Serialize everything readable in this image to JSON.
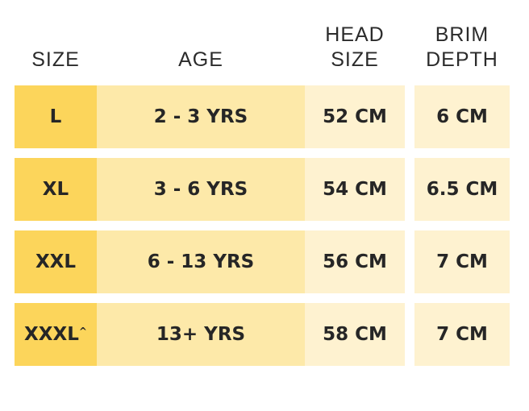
{
  "table": {
    "headers": [
      {
        "lines": [
          "SIZE"
        ]
      },
      {
        "lines": [
          "AGE"
        ]
      },
      {
        "lines": [
          "HEAD",
          "SIZE"
        ]
      },
      {
        "lines": [
          "BRIM",
          "DEPTH"
        ]
      }
    ],
    "rows": [
      {
        "size": "L",
        "age": "2 - 3 YRS",
        "head": "52 CM",
        "brim": "6 CM"
      },
      {
        "size": "XL",
        "age": "3 - 6 YRS",
        "head": "54 CM",
        "brim": "6.5 CM"
      },
      {
        "size": "XXL",
        "age": "6 - 13 YRS",
        "head": "56 CM",
        "brim": "7 CM"
      },
      {
        "size": "XXXL",
        "note": "^",
        "age": "13+ YRS",
        "head": "58 CM",
        "brim": "7 CM"
      }
    ]
  }
}
